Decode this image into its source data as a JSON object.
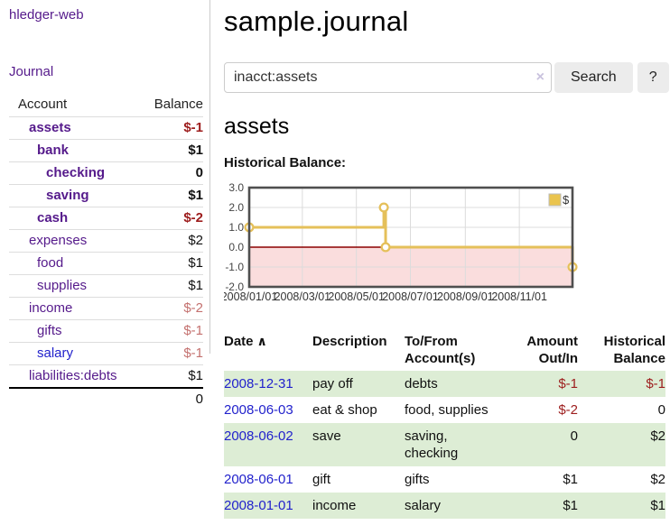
{
  "sidebar": {
    "brand": "hledger-web",
    "nav": {
      "journal": "Journal"
    },
    "accounts_table": {
      "col_account": "Account",
      "col_balance": "Balance",
      "rows": [
        {
          "name": "assets",
          "depth": 0,
          "bold": true,
          "balance": "$-1",
          "neg": "strong",
          "link_state": "visited"
        },
        {
          "name": "bank",
          "depth": 1,
          "bold": true,
          "balance": "$1",
          "neg": "none",
          "link_state": "visited"
        },
        {
          "name": "checking",
          "depth": 2,
          "bold": true,
          "balance": "0",
          "neg": "none",
          "link_state": "visited"
        },
        {
          "name": "saving",
          "depth": 2,
          "bold": true,
          "balance": "$1",
          "neg": "none",
          "link_state": "visited"
        },
        {
          "name": "cash",
          "depth": 1,
          "bold": true,
          "balance": "$-2",
          "neg": "strong",
          "link_state": "visited"
        },
        {
          "name": "expenses",
          "depth": 0,
          "bold": false,
          "balance": "$2",
          "neg": "none",
          "link_state": "visited"
        },
        {
          "name": "food",
          "depth": 1,
          "bold": false,
          "balance": "$1",
          "neg": "none",
          "link_state": "visited"
        },
        {
          "name": "supplies",
          "depth": 1,
          "bold": false,
          "balance": "$1",
          "neg": "none",
          "link_state": "visited"
        },
        {
          "name": "income",
          "depth": 0,
          "bold": false,
          "balance": "$-2",
          "neg": "soft",
          "link_state": "visited"
        },
        {
          "name": "gifts",
          "depth": 1,
          "bold": false,
          "balance": "$-1",
          "neg": "soft",
          "link_state": "visited"
        },
        {
          "name": "salary",
          "depth": 1,
          "bold": false,
          "balance": "$-1",
          "neg": "soft",
          "link_state": "unvisited"
        },
        {
          "name": "liabilities:debts",
          "depth": 0,
          "bold": false,
          "balance": "$1",
          "neg": "none",
          "link_state": "visited"
        }
      ],
      "total": "0"
    }
  },
  "header": {
    "title": "sample.journal"
  },
  "search": {
    "query": "inacct:assets",
    "clear_icon": "×",
    "button": "Search",
    "help_button": "?"
  },
  "register": {
    "heading": "assets",
    "chart_label": "Historical Balance:",
    "table": {
      "headers": {
        "date": "Date",
        "description": "Description",
        "accounts": "To/From Account(s)",
        "amount": "Amount Out/In",
        "balance": "Historical Balance"
      },
      "sort_icon": "∧",
      "rows": [
        {
          "date": "2008-12-31",
          "description": "pay off",
          "accounts": "debts",
          "amount": "$-1",
          "amount_neg": true,
          "balance": "$-1",
          "balance_neg": true
        },
        {
          "date": "2008-06-03",
          "description": "eat & shop",
          "accounts": "food, supplies",
          "amount": "$-2",
          "amount_neg": true,
          "balance": "0",
          "balance_neg": false
        },
        {
          "date": "2008-06-02",
          "description": "save",
          "accounts": "saving, checking",
          "amount": "0",
          "amount_neg": false,
          "balance": "$2",
          "balance_neg": false
        },
        {
          "date": "2008-06-01",
          "description": "gift",
          "accounts": "gifts",
          "amount": "$1",
          "amount_neg": false,
          "balance": "$2",
          "balance_neg": false
        },
        {
          "date": "2008-01-01",
          "description": "income",
          "accounts": "salary",
          "amount": "$1",
          "amount_neg": false,
          "balance": "$1",
          "balance_neg": false
        }
      ]
    }
  },
  "chart_data": {
    "type": "line",
    "step": true,
    "title": "Historical Balance:",
    "series": [
      {
        "name": "$",
        "points": [
          {
            "date": "2008-01-01",
            "day": 0,
            "value": 1
          },
          {
            "date": "2008-06-01",
            "day": 152,
            "value": 2
          },
          {
            "date": "2008-06-03",
            "day": 154,
            "value": 0
          },
          {
            "date": "2008-12-31",
            "day": 365,
            "value": -1
          }
        ]
      }
    ],
    "x_range_days": [
      0,
      365
    ],
    "x_ticks": [
      {
        "day": 0,
        "label": "2008/01/01"
      },
      {
        "day": 60,
        "label": "2008/03/01"
      },
      {
        "day": 121,
        "label": "2008/05/01"
      },
      {
        "day": 182,
        "label": "2008/07/01"
      },
      {
        "day": 244,
        "label": "2008/09/01"
      },
      {
        "day": 305,
        "label": "2008/11/01"
      }
    ],
    "y_ticks": [
      {
        "value": 3,
        "label": "3.0"
      },
      {
        "value": 2,
        "label": "2.0"
      },
      {
        "value": 1,
        "label": "1.0"
      },
      {
        "value": 0,
        "label": "0.0"
      },
      {
        "value": -1,
        "label": "-1.0"
      },
      {
        "value": -2,
        "label": "-2.0"
      }
    ],
    "ylim": [
      -2,
      3
    ],
    "grid": true,
    "legend": {
      "label": "$",
      "position": "top-right",
      "swatch_color": "#eac44e"
    },
    "colors": {
      "line": "#e5c05a",
      "marker_fill": "#ffffff",
      "negative_region": "#fadddd",
      "zero_line": "#8b0000",
      "grid": "#dcdcdc",
      "border": "#4f4f4f"
    }
  }
}
